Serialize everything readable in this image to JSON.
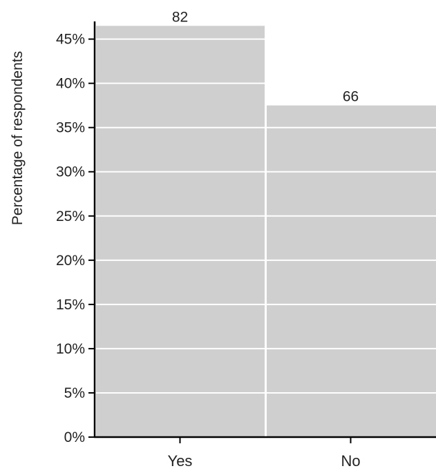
{
  "chart_data": {
    "type": "bar",
    "categories": [
      "Yes",
      "No"
    ],
    "values": [
      46.5,
      37.5
    ],
    "data_labels": [
      "82",
      "66"
    ],
    "ylabel": "Percentage of respondents",
    "xlabel": "",
    "ylim": [
      0,
      47
    ],
    "yticks": [
      0,
      5,
      10,
      15,
      20,
      25,
      30,
      35,
      40,
      45
    ],
    "ytick_labels": [
      "0%",
      "5%",
      "10%",
      "15%",
      "20%",
      "25%",
      "30%",
      "35%",
      "40%",
      "45%"
    ],
    "grid": true,
    "legend": "none",
    "bar_color": "#cfcfcf",
    "grid_color": "#ffffff",
    "axis_color": "#000000"
  }
}
